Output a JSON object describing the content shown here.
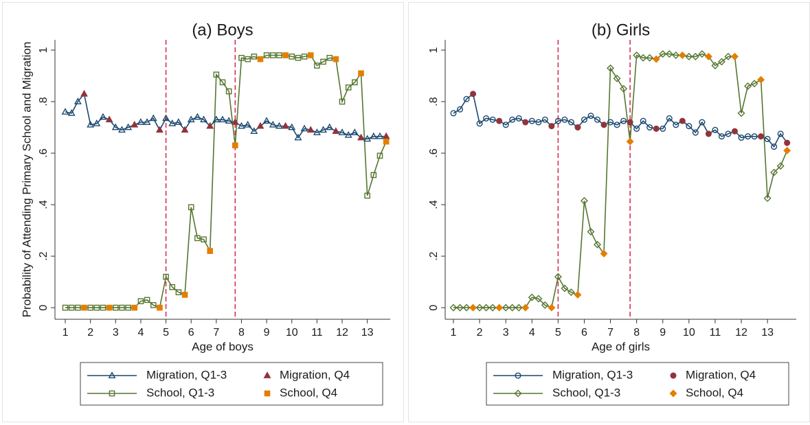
{
  "chart_data": [
    {
      "type": "line",
      "title": "(a) Boys",
      "ylabel": "Probability of Attending Primary School and Migration",
      "xlabel": "Age of boys",
      "x": [
        1,
        1.25,
        1.5,
        1.75,
        2,
        2.25,
        2.5,
        2.75,
        3,
        3.25,
        3.5,
        3.75,
        4,
        4.25,
        4.5,
        4.75,
        5,
        5.25,
        5.5,
        5.75,
        6,
        6.25,
        6.5,
        6.75,
        7,
        7.25,
        7.5,
        7.75,
        8,
        8.25,
        8.5,
        8.75,
        9,
        9.25,
        9.5,
        9.75,
        10,
        10.25,
        10.5,
        10.75,
        11,
        11.25,
        11.5,
        11.75,
        12,
        12.25,
        12.5,
        12.75,
        13,
        13.25,
        13.5,
        13.75
      ],
      "xlim": [
        0.59,
        13.91
      ],
      "xticks": [
        1,
        2,
        3,
        4,
        5,
        6,
        7,
        8,
        9,
        10,
        11,
        12,
        13
      ],
      "ylim": [
        -0.045,
        1.04
      ],
      "yticks": [
        0,
        {
          "value": 0.2,
          "label": ".2"
        },
        {
          "value": 0.4,
          "label": ".4"
        },
        {
          "value": 0.6,
          "label": ".6"
        },
        {
          "value": 0.8,
          "label": ".8"
        },
        1
      ],
      "vlines": [
        5,
        7.75
      ],
      "vline_color": "#d62f4f",
      "series": [
        {
          "name": "Migration, Q1-3",
          "color": "#1a476f",
          "marker": "triangle",
          "filled": false,
          "line": true,
          "values": [
            0.76,
            0.755,
            0.8,
            null,
            0.71,
            0.715,
            0.74,
            null,
            0.7,
            0.69,
            0.7,
            null,
            0.72,
            0.72,
            0.735,
            null,
            0.735,
            0.715,
            0.72,
            null,
            0.73,
            0.74,
            0.73,
            null,
            0.73,
            0.73,
            0.725,
            null,
            0.705,
            0.71,
            0.685,
            null,
            0.725,
            0.71,
            0.705,
            null,
            0.7,
            0.66,
            0.695,
            null,
            0.68,
            0.69,
            0.7,
            null,
            0.68,
            0.67,
            0.68,
            null,
            0.655,
            0.665,
            0.665,
            null
          ]
        },
        {
          "name": "Migration, Q4",
          "color": "#90353b",
          "marker": "triangle",
          "filled": true,
          "line": false,
          "values": [
            null,
            null,
            null,
            0.83,
            null,
            null,
            null,
            0.73,
            null,
            null,
            null,
            0.71,
            null,
            null,
            null,
            0.69,
            null,
            null,
            null,
            0.69,
            null,
            null,
            null,
            0.705,
            null,
            null,
            null,
            0.72,
            null,
            null,
            null,
            0.705,
            null,
            null,
            null,
            0.705,
            null,
            null,
            null,
            0.69,
            null,
            null,
            null,
            0.685,
            null,
            null,
            null,
            0.66,
            null,
            null,
            null,
            0.665
          ]
        },
        {
          "name": "School, Q1-3",
          "color": "#55752f",
          "marker": "square",
          "filled": false,
          "line": true,
          "values": [
            0,
            0,
            0,
            null,
            0,
            0,
            0,
            null,
            0,
            0,
            0,
            null,
            0.025,
            0.03,
            0.01,
            null,
            0.12,
            0.08,
            0.06,
            null,
            0.39,
            0.27,
            0.265,
            null,
            0.905,
            0.875,
            0.84,
            null,
            0.97,
            0.965,
            0.975,
            null,
            0.98,
            0.98,
            0.98,
            null,
            0.975,
            0.97,
            0.975,
            null,
            0.94,
            0.955,
            0.97,
            null,
            0.8,
            0.855,
            0.875,
            null,
            0.435,
            0.515,
            0.59,
            null
          ]
        },
        {
          "name": "School, Q4",
          "color": "#e37e00",
          "marker": "square",
          "filled": true,
          "line": false,
          "values": [
            null,
            null,
            null,
            0,
            null,
            null,
            null,
            0,
            null,
            null,
            null,
            0,
            null,
            null,
            null,
            0,
            null,
            null,
            null,
            0.05,
            null,
            null,
            null,
            0.22,
            null,
            null,
            null,
            0.63,
            null,
            null,
            null,
            0.965,
            null,
            null,
            null,
            0.98,
            null,
            null,
            null,
            0.98,
            null,
            null,
            null,
            0.965,
            null,
            null,
            null,
            0.91,
            null,
            null,
            null,
            0.645
          ]
        }
      ]
    },
    {
      "type": "line",
      "title": "(b) Girls",
      "xlabel": "Age of girls",
      "x": [
        1,
        1.25,
        1.5,
        1.75,
        2,
        2.25,
        2.5,
        2.75,
        3,
        3.25,
        3.5,
        3.75,
        4,
        4.25,
        4.5,
        4.75,
        5,
        5.25,
        5.5,
        5.75,
        6,
        6.25,
        6.5,
        6.75,
        7,
        7.25,
        7.5,
        7.75,
        8,
        8.25,
        8.5,
        8.75,
        9,
        9.25,
        9.5,
        9.75,
        10,
        10.25,
        10.5,
        10.75,
        11,
        11.25,
        11.5,
        11.75,
        12,
        12.25,
        12.5,
        12.75,
        13,
        13.25,
        13.5,
        13.75
      ],
      "xlim": [
        0.685,
        14.1
      ],
      "xticks": [
        1,
        2,
        3,
        4,
        5,
        6,
        7,
        8,
        9,
        10,
        11,
        12,
        13
      ],
      "ylim": [
        -0.045,
        1.04
      ],
      "yticks": [
        0,
        {
          "value": 0.2,
          "label": ".2"
        },
        {
          "value": 0.4,
          "label": ".4"
        },
        {
          "value": 0.6,
          "label": ".6"
        },
        {
          "value": 0.8,
          "label": ".8"
        },
        1
      ],
      "vlines": [
        5,
        7.75
      ],
      "vline_color": "#d62f4f",
      "series": [
        {
          "name": "Migration, Q1-3",
          "color": "#1a476f",
          "marker": "circle",
          "filled": false,
          "line": true,
          "values": [
            0.755,
            0.77,
            0.81,
            null,
            0.715,
            0.735,
            0.73,
            null,
            0.71,
            0.73,
            0.735,
            null,
            0.725,
            0.72,
            0.73,
            null,
            0.725,
            0.73,
            0.72,
            null,
            0.73,
            0.745,
            0.73,
            null,
            0.72,
            0.71,
            0.725,
            null,
            0.695,
            0.725,
            0.7,
            null,
            0.695,
            0.735,
            0.71,
            null,
            0.705,
            0.68,
            0.72,
            null,
            0.69,
            0.665,
            0.675,
            null,
            0.66,
            0.665,
            0.665,
            null,
            0.655,
            0.625,
            0.675,
            null
          ]
        },
        {
          "name": "Migration, Q4",
          "color": "#90353b",
          "marker": "circle",
          "filled": true,
          "line": false,
          "values": [
            null,
            null,
            null,
            0.83,
            null,
            null,
            null,
            0.725,
            null,
            null,
            null,
            0.72,
            null,
            null,
            null,
            0.705,
            null,
            null,
            null,
            0.7,
            null,
            null,
            null,
            0.71,
            null,
            null,
            null,
            0.72,
            null,
            null,
            null,
            0.695,
            null,
            null,
            null,
            0.725,
            null,
            null,
            null,
            0.675,
            null,
            null,
            null,
            0.685,
            null,
            null,
            null,
            0.665,
            null,
            null,
            null,
            0.64
          ]
        },
        {
          "name": "School, Q1-3",
          "color": "#55752f",
          "marker": "diamond",
          "filled": false,
          "line": true,
          "values": [
            0,
            0,
            0,
            null,
            0,
            0,
            0,
            null,
            0,
            0,
            0,
            null,
            0.04,
            0.035,
            0.01,
            null,
            0.12,
            0.075,
            0.06,
            null,
            0.415,
            0.295,
            0.245,
            null,
            0.93,
            0.89,
            0.85,
            null,
            0.98,
            0.97,
            0.97,
            null,
            0.985,
            0.985,
            0.98,
            null,
            0.975,
            0.975,
            0.985,
            null,
            0.94,
            0.955,
            0.975,
            null,
            0.755,
            0.86,
            0.87,
            null,
            0.425,
            0.525,
            0.55,
            null
          ]
        },
        {
          "name": "School, Q4",
          "color": "#e37e00",
          "marker": "diamond",
          "filled": true,
          "line": false,
          "values": [
            null,
            null,
            null,
            0,
            null,
            null,
            null,
            0,
            null,
            null,
            null,
            0,
            null,
            null,
            null,
            0,
            null,
            null,
            null,
            0.05,
            null,
            null,
            null,
            0.21,
            null,
            null,
            null,
            0.645,
            null,
            null,
            null,
            0.965,
            null,
            null,
            null,
            0.98,
            null,
            null,
            null,
            0.975,
            null,
            null,
            null,
            0.975,
            null,
            null,
            null,
            0.885,
            null,
            null,
            null,
            0.61
          ]
        }
      ]
    }
  ]
}
